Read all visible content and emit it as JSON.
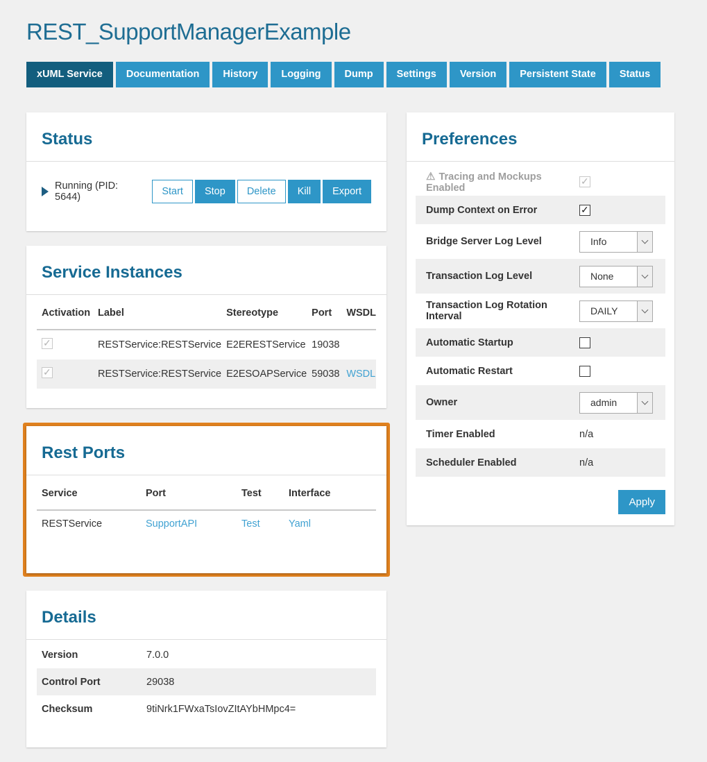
{
  "title": "REST_SupportManagerExample",
  "tabs": [
    {
      "label": "xUML Service",
      "active": true
    },
    {
      "label": "Documentation",
      "active": false
    },
    {
      "label": "History",
      "active": false
    },
    {
      "label": "Logging",
      "active": false
    },
    {
      "label": "Dump",
      "active": false
    },
    {
      "label": "Settings",
      "active": false
    },
    {
      "label": "Version",
      "active": false
    },
    {
      "label": "Persistent State",
      "active": false
    },
    {
      "label": "Status",
      "active": false
    }
  ],
  "status": {
    "heading": "Status",
    "running_text": "Running (PID: 5644)",
    "play_icon": "play-icon",
    "buttons": [
      {
        "label": "Start",
        "variant": "outline"
      },
      {
        "label": "Stop",
        "variant": "solid"
      },
      {
        "label": "Delete",
        "variant": "outline"
      },
      {
        "label": "Kill",
        "variant": "solid"
      },
      {
        "label": "Export",
        "variant": "solid"
      }
    ]
  },
  "service_instances": {
    "heading": "Service Instances",
    "columns": [
      "Activation",
      "Label",
      "Stereotype",
      "Port",
      "WSDL"
    ],
    "rows": [
      {
        "activation_checked": true,
        "label": "RESTService:RESTService",
        "stereotype": "E2ERESTService",
        "port": "19038",
        "wsdl": ""
      },
      {
        "activation_checked": true,
        "label": "RESTService:RESTService",
        "stereotype": "E2ESOAPService",
        "port": "59038",
        "wsdl": "WSDL"
      }
    ]
  },
  "rest_ports": {
    "heading": "Rest Ports",
    "columns": [
      "Service",
      "Port",
      "Test",
      "Interface"
    ],
    "rows": [
      {
        "service": "RESTService",
        "port_link": "SupportAPI",
        "test_link": "Test",
        "interface_link": "Yaml"
      }
    ],
    "highlight_color": "#e0811f"
  },
  "details": {
    "heading": "Details",
    "rows": [
      {
        "label": "Version",
        "value": "7.0.0"
      },
      {
        "label": "Control Port",
        "value": "29038"
      },
      {
        "label": "Checksum",
        "value": "9tiNrk1FWxaTsIovZItAYbHMpc4="
      }
    ]
  },
  "preferences": {
    "heading": "Preferences",
    "rows": [
      {
        "label": "Tracing and Mockups Enabled",
        "control": "checkbox",
        "checked": true,
        "disabled": true,
        "warning": true
      },
      {
        "label": "Dump Context on Error",
        "control": "checkbox",
        "checked": true,
        "disabled": false
      },
      {
        "label": "Bridge Server Log Level",
        "control": "select",
        "value": "Info"
      },
      {
        "label": "Transaction Log Level",
        "control": "select",
        "value": "None"
      },
      {
        "label": "Transaction Log Rotation Interval",
        "control": "select",
        "value": "DAILY"
      },
      {
        "label": "Automatic Startup",
        "control": "checkbox",
        "checked": false,
        "disabled": false
      },
      {
        "label": "Automatic Restart",
        "control": "checkbox",
        "checked": false,
        "disabled": false
      },
      {
        "label": "Owner",
        "control": "select",
        "value": "admin"
      },
      {
        "label": "Timer Enabled",
        "control": "text",
        "value": "n/a"
      },
      {
        "label": "Scheduler Enabled",
        "control": "text",
        "value": "n/a"
      }
    ],
    "apply_label": "Apply"
  },
  "colors": {
    "accent_blue": "#2e96c7",
    "active_tab": "#135e7e",
    "heading": "#166a93",
    "link": "#41a2d2",
    "highlight_orange": "#e0811f",
    "stripe": "#efefef",
    "page_background": "#f0f0f0"
  }
}
